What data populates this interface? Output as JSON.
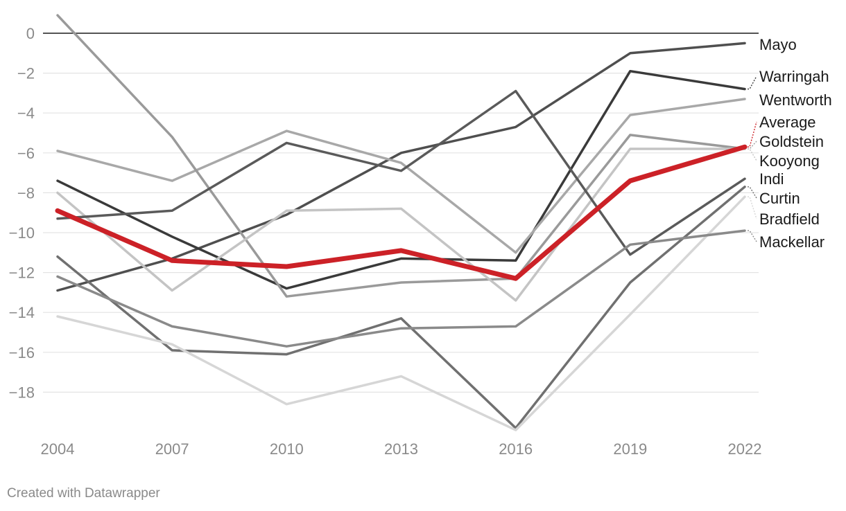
{
  "credit": "Created with Datawrapper",
  "chart_data": {
    "type": "line",
    "x": [
      2004,
      2007,
      2010,
      2013,
      2016,
      2019,
      2022
    ],
    "xlim": [
      2004,
      2022
    ],
    "ylim": [
      -20,
      1
    ],
    "yticks": [
      0,
      -2,
      -4,
      -6,
      -8,
      -10,
      -12,
      -14,
      -16,
      -18
    ],
    "ytick_labels": [
      "0",
      "−2",
      "−4",
      "−6",
      "−8",
      "−10",
      "−12",
      "−14",
      "−16",
      "−18"
    ],
    "grid": true,
    "zero_line": true,
    "series": [
      {
        "name": "Mayo",
        "values": [
          -12.9,
          -11.3,
          -9.1,
          -6.0,
          -4.7,
          -1.0,
          -0.5
        ],
        "color": "#4f4f4f",
        "width": 3.5
      },
      {
        "name": "Warringah",
        "values": [
          -7.4,
          -10.2,
          -12.8,
          -11.3,
          -11.4,
          -1.9,
          -2.8
        ],
        "color": "#3a3a3a",
        "width": 3.5
      },
      {
        "name": "Wentworth",
        "values": [
          -5.9,
          -7.4,
          -4.9,
          -6.5,
          -11.0,
          -4.1,
          -3.3
        ],
        "color": "#a8a8a8",
        "width": 3.5
      },
      {
        "name": "Average",
        "values": [
          -8.9,
          -11.4,
          -11.7,
          -10.9,
          -12.3,
          -7.4,
          -5.7
        ],
        "color": "#cc2127",
        "width": 7
      },
      {
        "name": "Goldstein",
        "values": [
          0.9,
          -5.2,
          -13.2,
          -12.5,
          -12.3,
          -5.1,
          -5.8
        ],
        "color": "#9a9a9a",
        "width": 3.5
      },
      {
        "name": "Kooyong",
        "values": [
          -8.0,
          -12.9,
          -8.9,
          -8.8,
          -13.4,
          -5.8,
          -5.8
        ],
        "color": "#c4c4c4",
        "width": 3.5
      },
      {
        "name": "Indi",
        "values": [
          -9.3,
          -8.9,
          -5.5,
          -6.9,
          -2.9,
          -11.1,
          -7.3
        ],
        "color": "#5a5a5a",
        "width": 3.5
      },
      {
        "name": "Curtin",
        "values": [
          -11.2,
          -15.9,
          -16.1,
          -14.3,
          -19.8,
          -12.5,
          -7.7
        ],
        "color": "#707070",
        "width": 3.5
      },
      {
        "name": "Bradfield",
        "values": [
          -14.2,
          -15.6,
          -18.6,
          -17.2,
          -19.9,
          -14.1,
          -8.2
        ],
        "color": "#d6d6d6",
        "width": 3.5
      },
      {
        "name": "Mackellar",
        "values": [
          -12.2,
          -14.7,
          -15.7,
          -14.8,
          -14.7,
          -10.6,
          -9.9
        ],
        "color": "#8a8a8a",
        "width": 3.5
      }
    ]
  }
}
